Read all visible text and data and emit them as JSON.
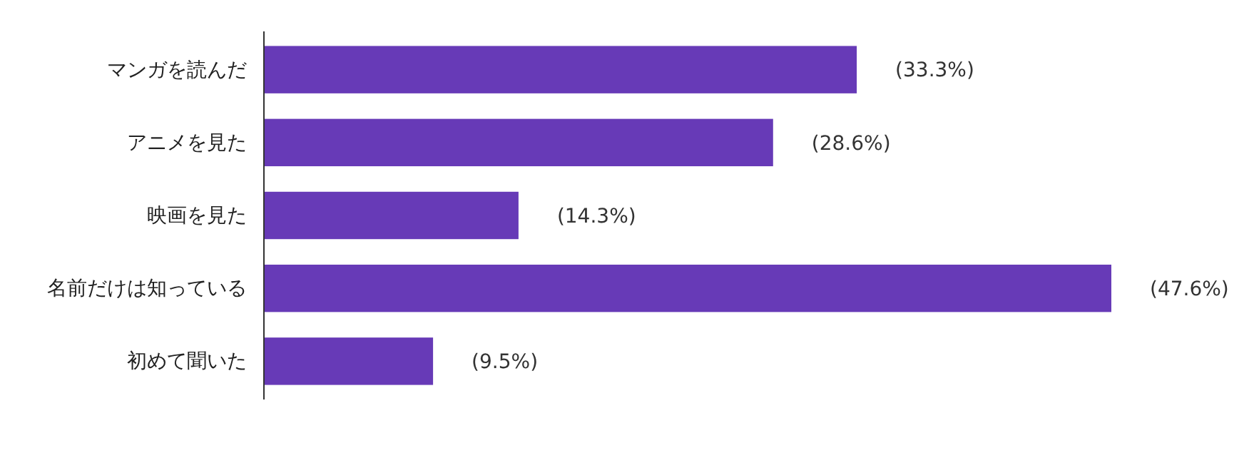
{
  "chart_data": {
    "type": "bar",
    "orientation": "horizontal",
    "categories": [
      "マンガを読んだ",
      "アニメを見た",
      "映画を見た",
      "名前だけは知っている",
      "初めて聞いた"
    ],
    "values": [
      33.3,
      28.6,
      14.3,
      47.6,
      9.5
    ],
    "value_labels": [
      "(33.3%)",
      "(28.6%)",
      "(14.3%)",
      "(47.6%)",
      "(9.5%)"
    ],
    "color": "#673ab7",
    "tick_labels": "y"
  }
}
